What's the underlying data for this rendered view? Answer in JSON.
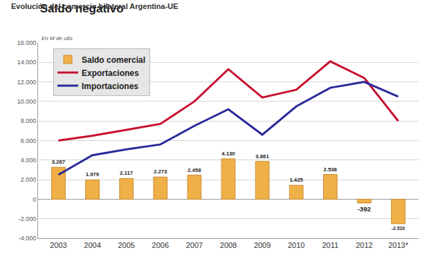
{
  "chart_data": {
    "type": "bar",
    "title": "Saldo negativo",
    "subtitle": "Evolución del comercio bilateral Argentina-UE",
    "ylabel": "En M de u$s",
    "categories": [
      "2003",
      "2004",
      "2005",
      "2006",
      "2007",
      "2008",
      "2009",
      "2010",
      "2011",
      "2012",
      "2013*"
    ],
    "series": [
      {
        "name": "Saldo comercial",
        "type": "bar",
        "color": "#f0b048",
        "values": [
          3267,
          1979,
          2117,
          2273,
          2458,
          4130,
          3861,
          1425,
          2538,
          -392,
          -2510
        ],
        "value_labels": [
          "3.267",
          "1.979",
          "2.117",
          "2.273",
          "2.458",
          "4.130",
          "3.861",
          "1.425",
          "2.538",
          "-392",
          "-2.510"
        ],
        "data_labels": true
      },
      {
        "name": "Exportaciones",
        "type": "line",
        "color": "#c8102e",
        "values": [
          6000,
          6500,
          7100,
          7700,
          10000,
          13300,
          10400,
          11200,
          14100,
          12400,
          8000
        ]
      },
      {
        "name": "Importaciones",
        "type": "line",
        "color": "#2a2a9a",
        "values": [
          2500,
          4500,
          5100,
          5600,
          7500,
          9200,
          6600,
          9500,
          11400,
          12000,
          10500
        ]
      }
    ],
    "ylim": [
      -4000,
      16000
    ],
    "yticks": [
      {
        "value": -4000,
        "label": "-4.000"
      },
      {
        "value": -2000,
        "label": "-2.000"
      },
      0,
      {
        "value": 2000,
        "label": "2.000"
      },
      {
        "value": 4000,
        "label": "4.000"
      },
      {
        "value": 6000,
        "label": "6.000"
      },
      {
        "value": 8000,
        "label": "8.000"
      },
      {
        "value": 10000,
        "label": "10.000"
      },
      {
        "value": 12000,
        "label": "12.000"
      },
      {
        "value": 14000,
        "label": "14.000"
      },
      {
        "value": 16000,
        "label": "16.000"
      }
    ],
    "grid": true,
    "legend": "upper left"
  }
}
